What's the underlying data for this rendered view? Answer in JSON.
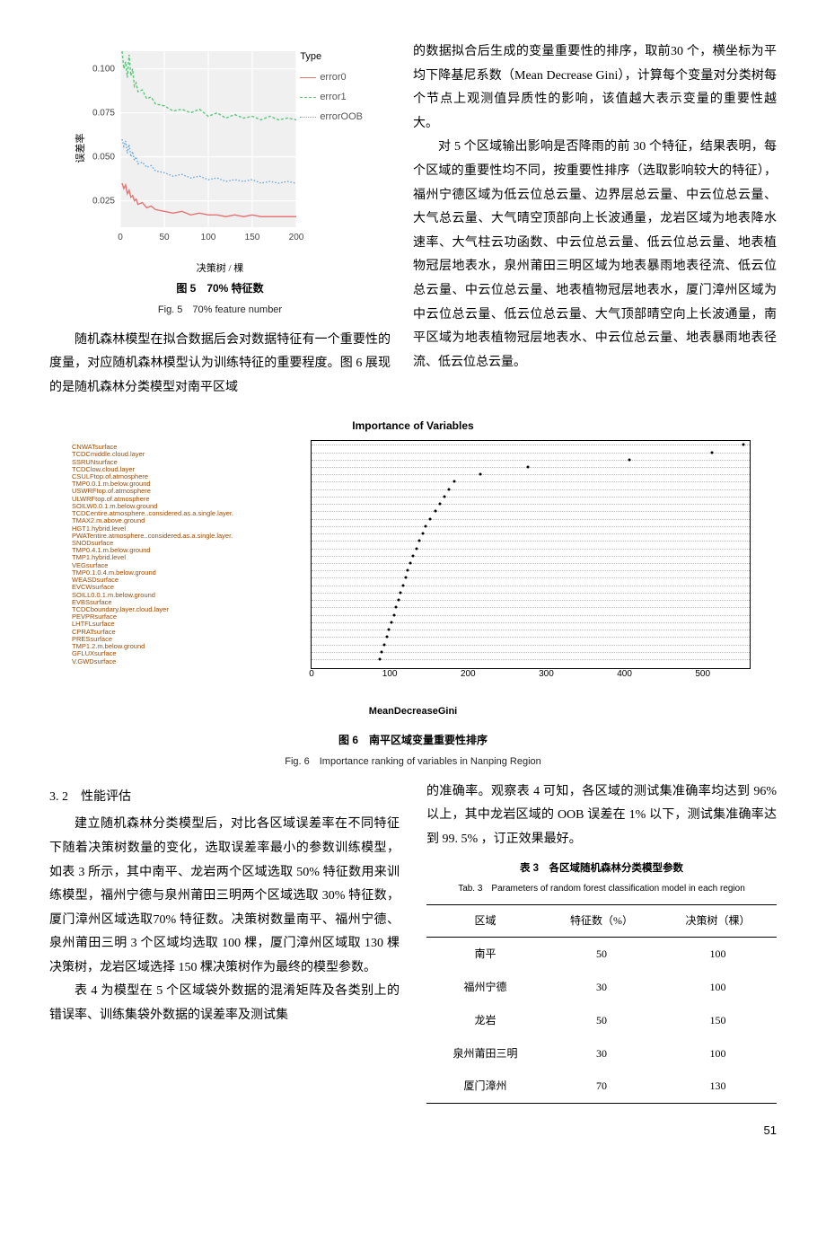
{
  "fig5": {
    "caption_cn": "图 5　70% 特征数",
    "caption_en": "Fig. 5　70% feature number",
    "ylabel": "误差率",
    "xlabel": "决策树 / 棵",
    "legend_title": "Type",
    "series": [
      {
        "name": "error0",
        "color": "#e57373",
        "dash": "solid"
      },
      {
        "name": "error1",
        "color": "#58c97a",
        "dash": "dashed"
      },
      {
        "name": "errorOOB",
        "color": "#6aa8e0",
        "dash": "dotted"
      }
    ],
    "xlim": [
      0,
      200
    ],
    "xticks": [
      0,
      50,
      100,
      150,
      200
    ],
    "ylim": [
      0.01,
      0.11
    ],
    "yticks": [
      0.025,
      0.05,
      0.075,
      0.1
    ],
    "background": "#f0f0f0",
    "grid_color": "#ffffff",
    "lines": {
      "error1": [
        [
          2,
          0.11
        ],
        [
          4,
          0.1
        ],
        [
          6,
          0.104
        ],
        [
          8,
          0.095
        ],
        [
          10,
          0.108
        ],
        [
          12,
          0.096
        ],
        [
          14,
          0.1
        ],
        [
          16,
          0.09
        ],
        [
          18,
          0.092
        ],
        [
          20,
          0.087
        ],
        [
          25,
          0.088
        ],
        [
          30,
          0.083
        ],
        [
          35,
          0.084
        ],
        [
          40,
          0.08
        ],
        [
          50,
          0.079
        ],
        [
          60,
          0.076
        ],
        [
          70,
          0.077
        ],
        [
          80,
          0.075
        ],
        [
          90,
          0.077
        ],
        [
          100,
          0.073
        ],
        [
          110,
          0.075
        ],
        [
          120,
          0.072
        ],
        [
          130,
          0.074
        ],
        [
          140,
          0.072
        ],
        [
          150,
          0.073
        ],
        [
          160,
          0.071
        ],
        [
          170,
          0.073
        ],
        [
          180,
          0.071
        ],
        [
          190,
          0.072
        ],
        [
          200,
          0.071
        ]
      ],
      "errorOOB": [
        [
          2,
          0.06
        ],
        [
          4,
          0.056
        ],
        [
          6,
          0.059
        ],
        [
          8,
          0.052
        ],
        [
          10,
          0.057
        ],
        [
          12,
          0.05
        ],
        [
          14,
          0.053
        ],
        [
          16,
          0.048
        ],
        [
          18,
          0.05
        ],
        [
          20,
          0.046
        ],
        [
          25,
          0.047
        ],
        [
          30,
          0.044
        ],
        [
          35,
          0.045
        ],
        [
          40,
          0.042
        ],
        [
          50,
          0.041
        ],
        [
          60,
          0.039
        ],
        [
          70,
          0.04
        ],
        [
          80,
          0.038
        ],
        [
          90,
          0.039
        ],
        [
          100,
          0.037
        ],
        [
          110,
          0.038
        ],
        [
          120,
          0.036
        ],
        [
          130,
          0.037
        ],
        [
          140,
          0.036
        ],
        [
          150,
          0.037
        ],
        [
          160,
          0.035
        ],
        [
          170,
          0.036
        ],
        [
          180,
          0.035
        ],
        [
          190,
          0.036
        ],
        [
          200,
          0.035
        ]
      ],
      "error0": [
        [
          2,
          0.035
        ],
        [
          4,
          0.032
        ],
        [
          6,
          0.034
        ],
        [
          8,
          0.029
        ],
        [
          10,
          0.031
        ],
        [
          12,
          0.027
        ],
        [
          14,
          0.028
        ],
        [
          16,
          0.025
        ],
        [
          18,
          0.026
        ],
        [
          20,
          0.023
        ],
        [
          25,
          0.024
        ],
        [
          30,
          0.021
        ],
        [
          35,
          0.022
        ],
        [
          40,
          0.02
        ],
        [
          50,
          0.019
        ],
        [
          60,
          0.018
        ],
        [
          70,
          0.019
        ],
        [
          80,
          0.017
        ],
        [
          90,
          0.018
        ],
        [
          100,
          0.017
        ],
        [
          110,
          0.017
        ],
        [
          120,
          0.016
        ],
        [
          130,
          0.017
        ],
        [
          140,
          0.016
        ],
        [
          150,
          0.017
        ],
        [
          160,
          0.016
        ],
        [
          170,
          0.016
        ],
        [
          180,
          0.016
        ],
        [
          190,
          0.016
        ],
        [
          200,
          0.016
        ]
      ]
    }
  },
  "para1": "随机森林模型在拟合数据后会对数据特征有一个重要性的度量，对应随机森林模型认为训练特征的重要程度。图 6 展现的是随机森林分类模型对南平区域",
  "para2": "的数据拟合后生成的变量重要性的排序，取前30 个，横坐标为平均下降基尼系数（Mean Decrease Gini），计算每个变量对分类树每个节点上观测值异质性的影响，该值越大表示变量的重要性越大。",
  "para3": "对 5 个区域输出影响是否降雨的前 30 个特征，结果表明，每个区域的重要性均不同，按重要性排序（选取影响较大的特征），福州宁德区域为低云位总云量、边界层总云量、中云位总云量、大气总云量、大气晴空顶部向上长波通量，龙岩区域为地表降水速率、大气柱云功函数、中云位总云量、低云位总云量、地表植物冠层地表水，泉州莆田三明区域为地表暴雨地表径流、低云位总云量、中云位总云量、地表植物冠层地表水，厦门漳州区域为中云位总云量、低云位总云量、大气顶部晴空向上长波通量，南平区域为地表植物冠层地表水、中云位总云量、地表暴雨地表径流、低云位总云量。",
  "fig6": {
    "title": "Importance of Variables",
    "caption_cn": "图 6　南平区域变量重要性排序",
    "caption_en": "Fig. 6　Importance ranking of variables in Nanping Region",
    "xaxis": "MeanDecreaseGini",
    "xlim": [
      0,
      560
    ],
    "xticks": [
      0,
      100,
      200,
      300,
      400,
      500
    ],
    "label_color": "#9e4a00",
    "vars": [
      {
        "name": "CNWATsurface",
        "v": 552
      },
      {
        "name": "TCDCmiddle.cloud.layer",
        "v": 512
      },
      {
        "name": "SSRUNsurface",
        "v": 406
      },
      {
        "name": "TCDClow.cloud.layer",
        "v": 276
      },
      {
        "name": "CSULFtop.of.atmosphere",
        "v": 216
      },
      {
        "name": "TMP0.0.1.m.below.ground",
        "v": 182
      },
      {
        "name": "USWRFtop.of.atmosphere",
        "v": 176
      },
      {
        "name": "ULWRFtop.of.atmosphere",
        "v": 170
      },
      {
        "name": "SOILW0.0.1.m.below.ground",
        "v": 164
      },
      {
        "name": "TCDCentire.atmosphere..considered.as.a.single.layer.",
        "v": 158
      },
      {
        "name": "TMAX2.m.above.ground",
        "v": 152
      },
      {
        "name": "HGT1.hybrid.level",
        "v": 146
      },
      {
        "name": "PWATentire.atmosphere..considered.as.a.single.layer.",
        "v": 142
      },
      {
        "name": "SNODsurface",
        "v": 138
      },
      {
        "name": "TMP0.4.1.m.below.ground",
        "v": 134
      },
      {
        "name": "TMP1.hybrid.level",
        "v": 130
      },
      {
        "name": "VEGsurface",
        "v": 126
      },
      {
        "name": "TMP0.1.0.4.m.below.ground",
        "v": 123
      },
      {
        "name": "WEASDsurface",
        "v": 120
      },
      {
        "name": "EVCWsurface",
        "v": 117
      },
      {
        "name": "SOILL0.0.1.m.below.ground",
        "v": 114
      },
      {
        "name": "EVBSsurface",
        "v": 111
      },
      {
        "name": "TCDCboundary.layer.cloud.layer",
        "v": 108
      },
      {
        "name": "PEVPRsurface",
        "v": 105
      },
      {
        "name": "LHTFLsurface",
        "v": 102
      },
      {
        "name": "CPRATsurface",
        "v": 99
      },
      {
        "name": "PRESsurface",
        "v": 96
      },
      {
        "name": "TMP1.2.m.below.ground",
        "v": 93
      },
      {
        "name": "GFLUXsurface",
        "v": 90
      },
      {
        "name": "V.GWDsurface",
        "v": 87
      }
    ]
  },
  "section32": "3. 2　性能评估",
  "para4": "建立随机森林分类模型后，对比各区域误差率在不同特征下随着决策树数量的变化，选取误差率最小的参数训练模型，如表 3 所示，其中南平、龙岩两个区域选取 50% 特征数用来训练模型，福州宁德与泉州莆田三明两个区域选取 30% 特征数，厦门漳州区域选取70% 特征数。决策树数量南平、福州宁德、泉州莆田三明 3 个区域均选取 100 棵，厦门漳州区域取 130 棵决策树，龙岩区域选择 150 棵决策树作为最终的模型参数。",
  "para5": "表 4 为模型在 5 个区域袋外数据的混淆矩阵及各类别上的错误率、训练集袋外数据的误差率及测试集",
  "para6": "的准确率。观察表 4 可知，各区域的测试集准确率均达到 96% 以上，其中龙岩区域的 OOB 误差在 1% 以下，测试集准确率达到 99. 5% ，订正效果最好。",
  "table3": {
    "caption_cn": "表 3　各区域随机森林分类模型参数",
    "caption_en": "Tab. 3　Parameters of random forest classification model in each region",
    "headers": [
      "区域",
      "特征数（%）",
      "决策树（棵）"
    ],
    "rows": [
      [
        "南平",
        "50",
        "100"
      ],
      [
        "福州宁德",
        "30",
        "100"
      ],
      [
        "龙岩",
        "50",
        "150"
      ],
      [
        "泉州莆田三明",
        "30",
        "100"
      ],
      [
        "厦门漳州",
        "70",
        "130"
      ]
    ]
  },
  "pagenum": "51"
}
